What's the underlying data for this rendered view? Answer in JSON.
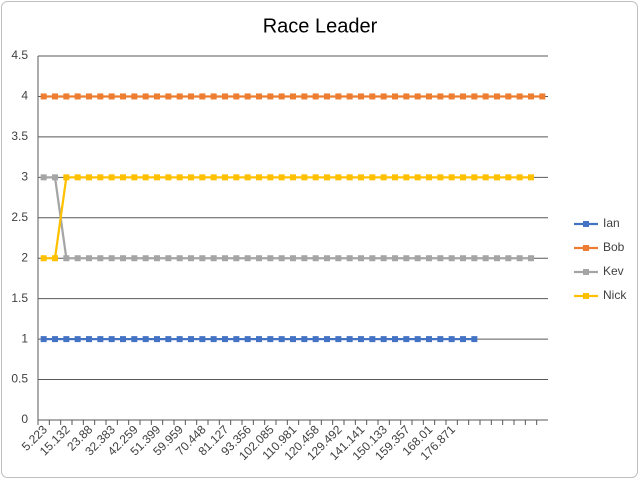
{
  "chart_data": {
    "type": "line",
    "title": "Race Leader",
    "categories": [
      "5.223",
      null,
      "15.132",
      null,
      "23.88",
      null,
      "32.383",
      null,
      "42.259",
      null,
      "51.399",
      null,
      "59.959",
      null,
      "70.448",
      null,
      "81.127",
      null,
      "93.356",
      null,
      "102.085",
      null,
      "110.981",
      null,
      "120.458",
      null,
      "129.492",
      null,
      "141.141",
      null,
      "150.133",
      null,
      "159.357",
      null,
      "168.01",
      null,
      "176.871",
      null,
      null,
      null,
      null,
      null,
      null,
      null,
      null
    ],
    "series": [
      {
        "name": "Ian",
        "color": "#4472c4",
        "values": [
          1,
          1,
          1,
          1,
          1,
          1,
          1,
          1,
          1,
          1,
          1,
          1,
          1,
          1,
          1,
          1,
          1,
          1,
          1,
          1,
          1,
          1,
          1,
          1,
          1,
          1,
          1,
          1,
          1,
          1,
          1,
          1,
          1,
          1,
          1,
          1,
          1,
          1,
          1,
          null,
          null,
          null,
          null,
          null,
          null
        ]
      },
      {
        "name": "Bob",
        "color": "#ed7d31",
        "values": [
          4,
          4,
          4,
          4,
          4,
          4,
          4,
          4,
          4,
          4,
          4,
          4,
          4,
          4,
          4,
          4,
          4,
          4,
          4,
          4,
          4,
          4,
          4,
          4,
          4,
          4,
          4,
          4,
          4,
          4,
          4,
          4,
          4,
          4,
          4,
          4,
          4,
          4,
          4,
          4,
          4,
          4,
          4,
          4,
          4
        ]
      },
      {
        "name": "Kev",
        "color": "#a5a5a5",
        "values": [
          3,
          3,
          2,
          2,
          2,
          2,
          2,
          2,
          2,
          2,
          2,
          2,
          2,
          2,
          2,
          2,
          2,
          2,
          2,
          2,
          2,
          2,
          2,
          2,
          2,
          2,
          2,
          2,
          2,
          2,
          2,
          2,
          2,
          2,
          2,
          2,
          2,
          2,
          2,
          2,
          2,
          2,
          2,
          2,
          null
        ]
      },
      {
        "name": "Nick",
        "color": "#ffc000",
        "values": [
          2,
          2,
          3,
          3,
          3,
          3,
          3,
          3,
          3,
          3,
          3,
          3,
          3,
          3,
          3,
          3,
          3,
          3,
          3,
          3,
          3,
          3,
          3,
          3,
          3,
          3,
          3,
          3,
          3,
          3,
          3,
          3,
          3,
          3,
          3,
          3,
          3,
          3,
          3,
          3,
          3,
          3,
          3,
          3,
          null
        ]
      }
    ],
    "ylim": [
      0,
      4.5
    ],
    "yticks": [
      0,
      0.5,
      1,
      1.5,
      2,
      2.5,
      3,
      3.5,
      4,
      4.5
    ],
    "grid": true,
    "legend": "right"
  }
}
